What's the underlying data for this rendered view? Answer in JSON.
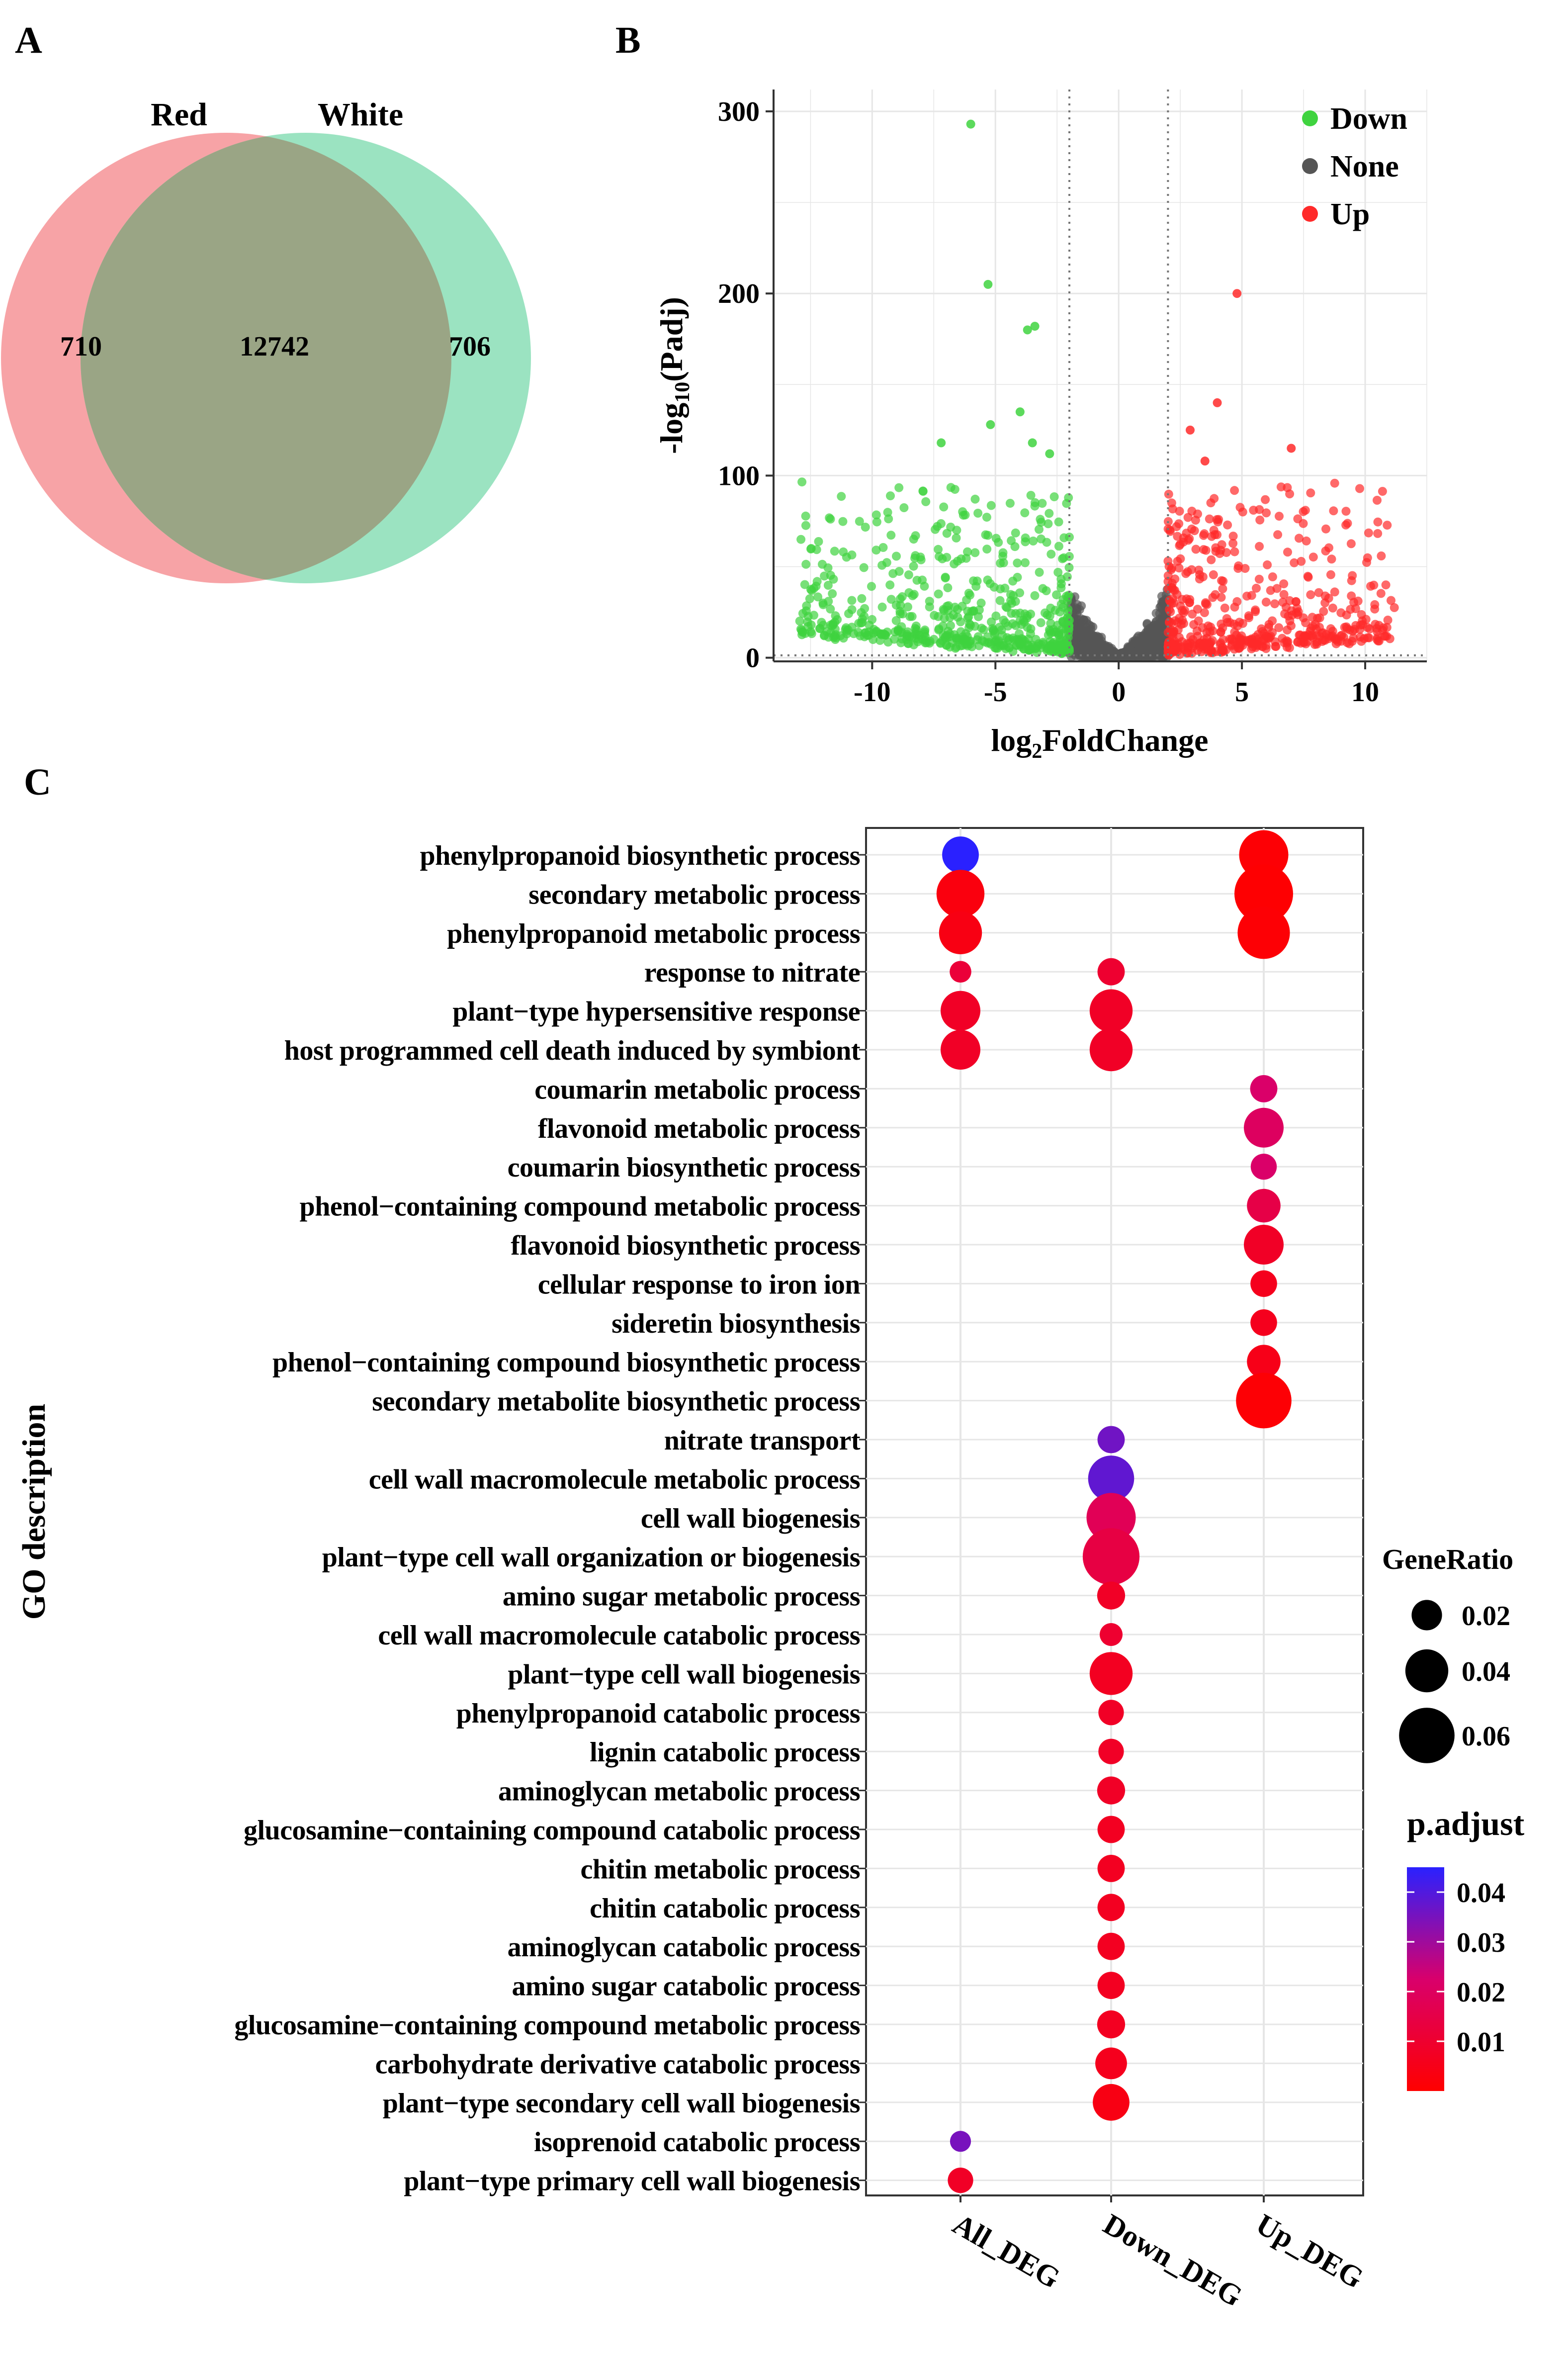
{
  "panel_labels": {
    "a": "A",
    "b": "B",
    "c": "C"
  },
  "colors": {
    "venn_red": "#f7a3a6",
    "venn_green": "#9be3c1",
    "venn_overlap": "#9aa585",
    "down": "#3fd33f",
    "none": "#555555",
    "up": "#ff2a2a",
    "grid": "#e6e6e6",
    "padj_low": "#ff0000",
    "padj_mid": "#d9006b",
    "padj_high": "#2a21ff"
  },
  "chart_data": [
    {
      "type": "venn",
      "sets": [
        "Red",
        "White"
      ],
      "regions": {
        "red_only": "710",
        "both": "12742",
        "white_only": "706"
      }
    },
    {
      "type": "scatter",
      "xlabel": "log2FoldChange",
      "ylabel": "-log10(Padj)",
      "xlim": [
        -14,
        12.5
      ],
      "ylim": [
        -2,
        312
      ],
      "xticks": [
        -10,
        -5,
        0,
        5,
        10
      ],
      "yticks": [
        0,
        100,
        200,
        300
      ],
      "fc_cutoff": 2,
      "padj_line": 1.3,
      "legend": [
        "Down",
        "None",
        "Up"
      ],
      "highlight_points": [
        {
          "group": "Down",
          "x": -6.0,
          "y": 293
        },
        {
          "group": "Down",
          "x": -5.3,
          "y": 205
        },
        {
          "group": "Down",
          "x": -3.7,
          "y": 180
        },
        {
          "group": "Down",
          "x": -3.4,
          "y": 182
        },
        {
          "group": "Down",
          "x": -7.2,
          "y": 118
        },
        {
          "group": "Down",
          "x": -5.2,
          "y": 128
        },
        {
          "group": "Down",
          "x": -4.0,
          "y": 135
        },
        {
          "group": "Down",
          "x": -3.5,
          "y": 118
        },
        {
          "group": "Down",
          "x": -2.8,
          "y": 112
        },
        {
          "group": "Up",
          "x": 4.8,
          "y": 200
        },
        {
          "group": "Up",
          "x": 4.0,
          "y": 140
        },
        {
          "group": "Up",
          "x": 2.9,
          "y": 125
        },
        {
          "group": "Up",
          "x": 7.0,
          "y": 115
        },
        {
          "group": "Up",
          "x": 3.5,
          "y": 108
        }
      ]
    },
    {
      "type": "scatter",
      "subtype": "dotplot",
      "ylabel": "GO description",
      "categories": [
        "All_DEG",
        "Down_DEG",
        "Up_DEG"
      ],
      "terms": [
        "phenylpropanoid biosynthetic process",
        "secondary metabolic process",
        "phenylpropanoid metabolic process",
        "response to nitrate",
        "plant−type hypersensitive response",
        "host programmed cell death induced by symbiont",
        "coumarin metabolic process",
        "flavonoid metabolic process",
        "coumarin biosynthetic process",
        "phenol−containing compound metabolic process",
        "flavonoid biosynthetic process",
        "cellular response to iron ion",
        "sideretin biosynthesis",
        "phenol−containing compound biosynthetic process",
        "secondary metabolite biosynthetic process",
        "nitrate transport",
        "cell wall macromolecule metabolic process",
        "cell wall biogenesis",
        "plant−type cell wall organization or biogenesis",
        "amino sugar metabolic process",
        "cell wall macromolecule catabolic process",
        "plant−type cell wall biogenesis",
        "phenylpropanoid catabolic process",
        "lignin catabolic process",
        "aminoglycan metabolic process",
        "glucosamine−containing compound catabolic process",
        "chitin metabolic process",
        "chitin catabolic process",
        "aminoglycan catabolic process",
        "amino sugar catabolic process",
        "glucosamine−containing compound metabolic process",
        "carbohydrate derivative catabolic process",
        "plant−type secondary cell wall biogenesis",
        "isoprenoid catabolic process",
        "plant−type primary cell wall biogenesis"
      ],
      "points": [
        {
          "term": 0,
          "group": 0,
          "gene_ratio": 0.03,
          "p_adjust": 0.045
        },
        {
          "term": 0,
          "group": 2,
          "gene_ratio": 0.05,
          "p_adjust": 0.001
        },
        {
          "term": 1,
          "group": 0,
          "gene_ratio": 0.048,
          "p_adjust": 0.003
        },
        {
          "term": 1,
          "group": 2,
          "gene_ratio": 0.065,
          "p_adjust": 0.0005
        },
        {
          "term": 2,
          "group": 0,
          "gene_ratio": 0.04,
          "p_adjust": 0.004
        },
        {
          "term": 2,
          "group": 2,
          "gene_ratio": 0.055,
          "p_adjust": 0.001
        },
        {
          "term": 3,
          "group": 0,
          "gene_ratio": 0.006,
          "p_adjust": 0.012
        },
        {
          "term": 3,
          "group": 1,
          "gene_ratio": 0.015,
          "p_adjust": 0.01
        },
        {
          "term": 4,
          "group": 0,
          "gene_ratio": 0.035,
          "p_adjust": 0.008
        },
        {
          "term": 4,
          "group": 1,
          "gene_ratio": 0.04,
          "p_adjust": 0.008
        },
        {
          "term": 5,
          "group": 0,
          "gene_ratio": 0.035,
          "p_adjust": 0.008
        },
        {
          "term": 5,
          "group": 1,
          "gene_ratio": 0.04,
          "p_adjust": 0.008
        },
        {
          "term": 6,
          "group": 2,
          "gene_ratio": 0.015,
          "p_adjust": 0.022
        },
        {
          "term": 7,
          "group": 2,
          "gene_ratio": 0.035,
          "p_adjust": 0.02
        },
        {
          "term": 8,
          "group": 2,
          "gene_ratio": 0.013,
          "p_adjust": 0.022
        },
        {
          "term": 9,
          "group": 2,
          "gene_ratio": 0.025,
          "p_adjust": 0.015
        },
        {
          "term": 10,
          "group": 2,
          "gene_ratio": 0.035,
          "p_adjust": 0.008
        },
        {
          "term": 11,
          "group": 2,
          "gene_ratio": 0.014,
          "p_adjust": 0.006
        },
        {
          "term": 12,
          "group": 2,
          "gene_ratio": 0.014,
          "p_adjust": 0.006
        },
        {
          "term": 13,
          "group": 2,
          "gene_ratio": 0.025,
          "p_adjust": 0.005
        },
        {
          "term": 14,
          "group": 2,
          "gene_ratio": 0.06,
          "p_adjust": 0.001
        },
        {
          "term": 15,
          "group": 1,
          "gene_ratio": 0.015,
          "p_adjust": 0.036
        },
        {
          "term": 16,
          "group": 1,
          "gene_ratio": 0.045,
          "p_adjust": 0.038
        },
        {
          "term": 17,
          "group": 1,
          "gene_ratio": 0.05,
          "p_adjust": 0.018
        },
        {
          "term": 18,
          "group": 1,
          "gene_ratio": 0.062,
          "p_adjust": 0.014
        },
        {
          "term": 19,
          "group": 1,
          "gene_ratio": 0.016,
          "p_adjust": 0.008
        },
        {
          "term": 20,
          "group": 1,
          "gene_ratio": 0.008,
          "p_adjust": 0.01
        },
        {
          "term": 21,
          "group": 1,
          "gene_ratio": 0.04,
          "p_adjust": 0.007
        },
        {
          "term": 22,
          "group": 1,
          "gene_ratio": 0.012,
          "p_adjust": 0.008
        },
        {
          "term": 23,
          "group": 1,
          "gene_ratio": 0.012,
          "p_adjust": 0.008
        },
        {
          "term": 24,
          "group": 1,
          "gene_ratio": 0.016,
          "p_adjust": 0.008
        },
        {
          "term": 25,
          "group": 1,
          "gene_ratio": 0.015,
          "p_adjust": 0.007
        },
        {
          "term": 26,
          "group": 1,
          "gene_ratio": 0.015,
          "p_adjust": 0.007
        },
        {
          "term": 27,
          "group": 1,
          "gene_ratio": 0.015,
          "p_adjust": 0.007
        },
        {
          "term": 28,
          "group": 1,
          "gene_ratio": 0.015,
          "p_adjust": 0.007
        },
        {
          "term": 29,
          "group": 1,
          "gene_ratio": 0.015,
          "p_adjust": 0.007
        },
        {
          "term": 30,
          "group": 1,
          "gene_ratio": 0.016,
          "p_adjust": 0.007
        },
        {
          "term": 31,
          "group": 1,
          "gene_ratio": 0.022,
          "p_adjust": 0.006
        },
        {
          "term": 32,
          "group": 1,
          "gene_ratio": 0.03,
          "p_adjust": 0.004
        },
        {
          "term": 33,
          "group": 0,
          "gene_ratio": 0.005,
          "p_adjust": 0.035
        },
        {
          "term": 34,
          "group": 0,
          "gene_ratio": 0.012,
          "p_adjust": 0.008
        }
      ],
      "size_legend": {
        "title": "GeneRatio",
        "labels": [
          "0.02",
          "0.04",
          "0.06"
        ],
        "values": [
          0.02,
          0.04,
          0.06
        ]
      },
      "color_legend": {
        "title": "p.adjust",
        "labels": [
          "0.04",
          "0.03",
          "0.02",
          "0.01"
        ],
        "values": [
          0.04,
          0.03,
          0.02,
          0.01
        ],
        "range": [
          0.0,
          0.045
        ]
      }
    }
  ]
}
